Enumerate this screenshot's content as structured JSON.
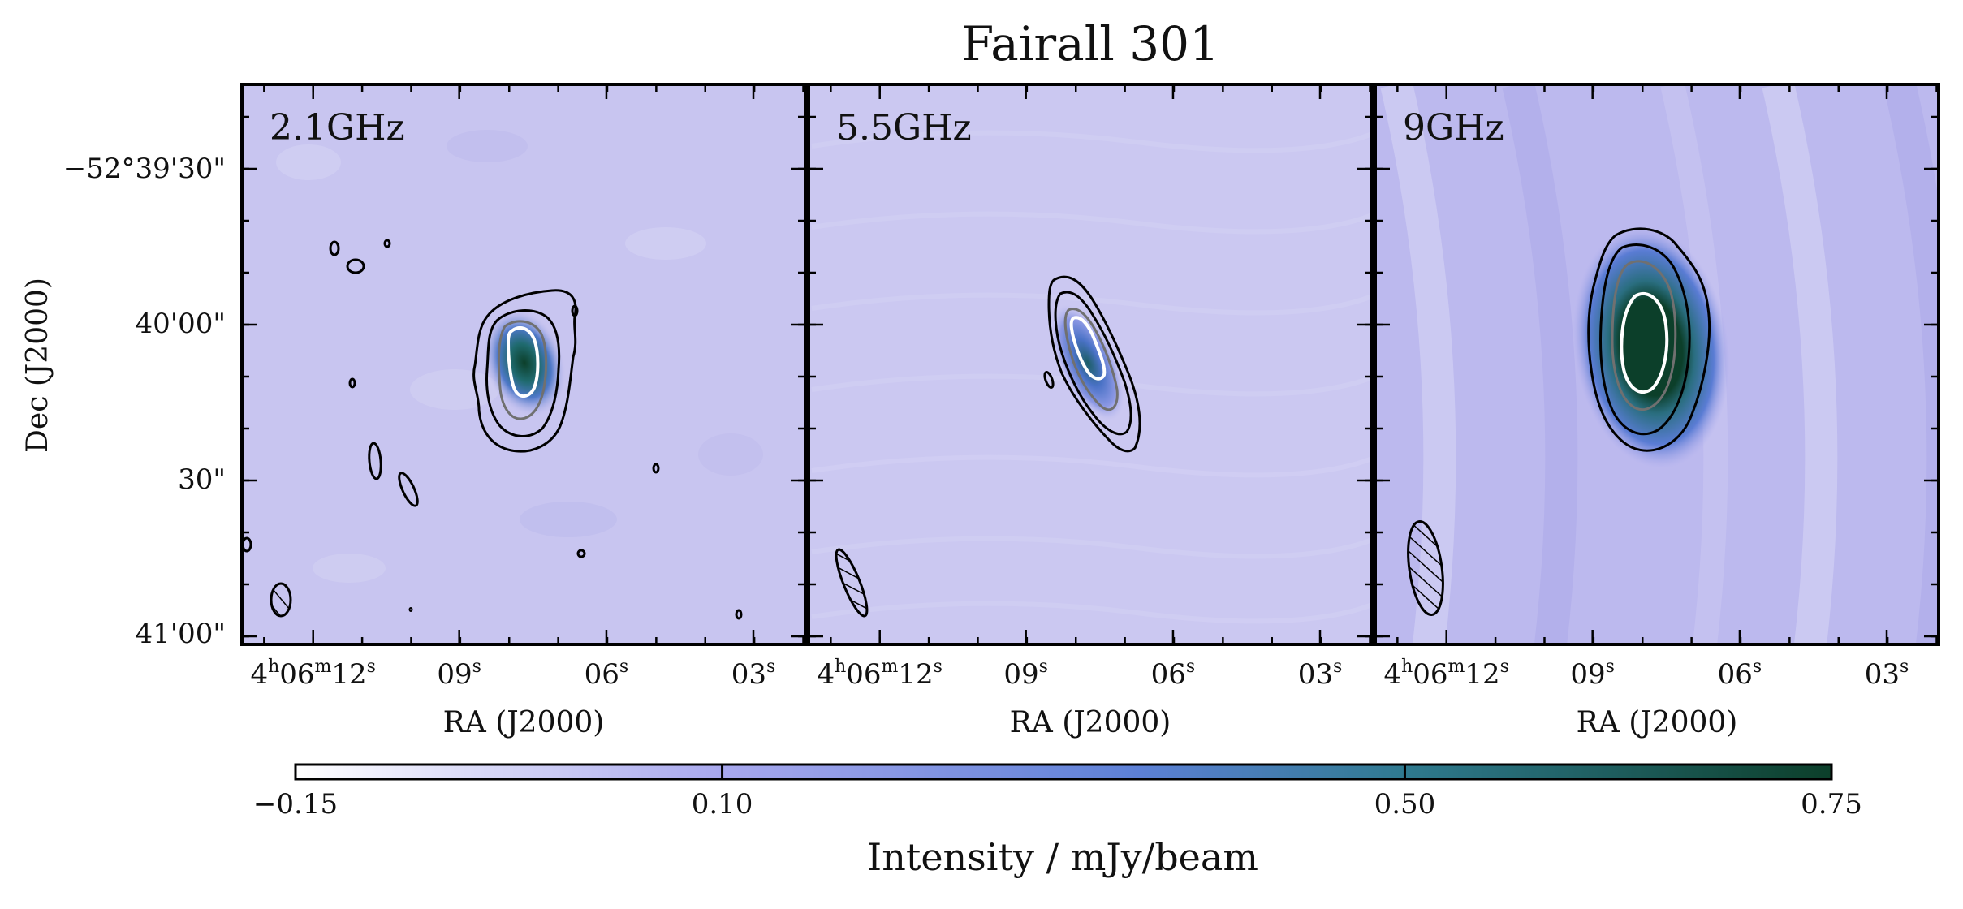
{
  "chart_data": {
    "type": "heatmap",
    "title": "Fairall 301",
    "ylabel": "Dec (J2000)",
    "y_tick_labels": [
      "−52°39'30\"",
      "40'00\"",
      "30\"",
      "41'00\""
    ],
    "panels": [
      {
        "label": "2.1GHz",
        "xlabel": "RA (J2000)",
        "x_tick_labels": [
          {
            "h": "4",
            "hs": "h",
            "m": "06",
            "ms": "m",
            "s": "12",
            "ss": "s"
          },
          {
            "s": "09",
            "ss": "s"
          },
          {
            "s": "06",
            "ss": "s"
          },
          {
            "s": "03",
            "ss": "s"
          }
        ],
        "source_peak_mJy_per_beam": 0.6,
        "contour_colors": [
          "#000000",
          "#000000",
          "#707070",
          "#ffffff"
        ]
      },
      {
        "label": "5.5GHz",
        "xlabel": "RA (J2000)",
        "x_tick_labels": [
          {
            "h": "4",
            "hs": "h",
            "m": "06",
            "ms": "m",
            "s": "12",
            "ss": "s"
          },
          {
            "s": "09",
            "ss": "s"
          },
          {
            "s": "06",
            "ss": "s"
          },
          {
            "s": "03",
            "ss": "s"
          }
        ],
        "source_peak_mJy_per_beam": 0.45,
        "contour_colors": [
          "#000000",
          "#000000",
          "#707070",
          "#ffffff"
        ]
      },
      {
        "label": "9GHz",
        "xlabel": "RA (J2000)",
        "x_tick_labels": [
          {
            "h": "4",
            "hs": "h",
            "m": "06",
            "ms": "m",
            "s": "12",
            "ss": "s"
          },
          {
            "s": "09",
            "ss": "s"
          },
          {
            "s": "06",
            "ss": "s"
          },
          {
            "s": "03",
            "ss": "s"
          }
        ],
        "source_peak_mJy_per_beam": 0.75,
        "contour_colors": [
          "#000000",
          "#000000",
          "#707070",
          "#ffffff"
        ]
      }
    ],
    "colorbar": {
      "label": "Intensity / mJy/beam",
      "range": [
        -0.15,
        0.75
      ],
      "ticks": [
        {
          "value": -0.15,
          "label": "−0.15"
        },
        {
          "value": 0.1,
          "label": "0.10"
        },
        {
          "value": 0.5,
          "label": "0.50"
        },
        {
          "value": 0.75,
          "label": "0.75"
        }
      ],
      "colors": [
        "#ffffff",
        "#a8a8ee",
        "#5c80d6",
        "#2f7a8f",
        "#0c3f2a"
      ]
    }
  }
}
